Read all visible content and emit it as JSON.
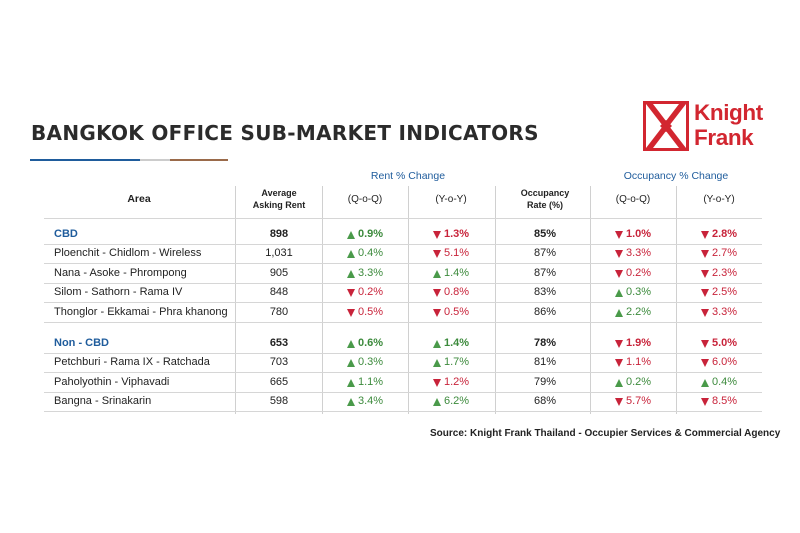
{
  "title": "BANGKOK OFFICE SUB-MARKET INDICATORS",
  "logo": {
    "line1": "Knight",
    "line2": "Frank",
    "color": "#d22630"
  },
  "headers": {
    "area": "Area",
    "rent_line1": "Average",
    "rent_line2": "Asking Rent",
    "rent_change": "Rent % Change",
    "qoq": "(Q-o-Q)",
    "yoy": "(Y-o-Y)",
    "occ_line1": "Occupancy",
    "occ_line2": "Rate (%)",
    "occ_change": "Occupancy % Change"
  },
  "rows": [
    {
      "area": "CBD",
      "group": true,
      "rent": "898",
      "rent_qoq": "0.9%",
      "rent_qoq_dir": "up",
      "rent_yoy": "1.3%",
      "rent_yoy_dir": "down",
      "occ": "85%",
      "occ_qoq": "1.0%",
      "occ_qoq_dir": "down",
      "occ_yoy": "2.8%",
      "occ_yoy_dir": "down"
    },
    {
      "area": "Ploenchit - Chidlom - Wireless",
      "group": false,
      "rent": "1,031",
      "rent_qoq": "0.4%",
      "rent_qoq_dir": "up",
      "rent_yoy": "5.1%",
      "rent_yoy_dir": "down",
      "occ": "87%",
      "occ_qoq": "3.3%",
      "occ_qoq_dir": "down",
      "occ_yoy": "2.7%",
      "occ_yoy_dir": "down"
    },
    {
      "area": "Nana - Asoke - Phrompong",
      "group": false,
      "rent": "905",
      "rent_qoq": "3.3%",
      "rent_qoq_dir": "up",
      "rent_yoy": "1.4%",
      "rent_yoy_dir": "up",
      "occ": "87%",
      "occ_qoq": "0.2%",
      "occ_qoq_dir": "down",
      "occ_yoy": "2.3%",
      "occ_yoy_dir": "down"
    },
    {
      "area": "Silom - Sathorn - Rama IV",
      "group": false,
      "rent": "848",
      "rent_qoq": "0.2%",
      "rent_qoq_dir": "down",
      "rent_yoy": "0.8%",
      "rent_yoy_dir": "down",
      "occ": "83%",
      "occ_qoq": "0.3%",
      "occ_qoq_dir": "up",
      "occ_yoy": "2.5%",
      "occ_yoy_dir": "down"
    },
    {
      "area": "Thonglor  - Ekkamai - Phra khanong",
      "group": false,
      "rent": "780",
      "rent_qoq": "0.5%",
      "rent_qoq_dir": "down",
      "rent_yoy": "0.5%",
      "rent_yoy_dir": "down",
      "occ": "86%",
      "occ_qoq": "2.2%",
      "occ_qoq_dir": "up",
      "occ_yoy": "3.3%",
      "occ_yoy_dir": "down"
    },
    {
      "area": "Non - CBD",
      "group": true,
      "rent": "653",
      "rent_qoq": "0.6%",
      "rent_qoq_dir": "up",
      "rent_yoy": "1.4%",
      "rent_yoy_dir": "up",
      "occ": "78%",
      "occ_qoq": "1.9%",
      "occ_qoq_dir": "down",
      "occ_yoy": "5.0%",
      "occ_yoy_dir": "down"
    },
    {
      "area": "Petchburi - Rama IX - Ratchada",
      "group": false,
      "rent": "703",
      "rent_qoq": "0.3%",
      "rent_qoq_dir": "up",
      "rent_yoy": "1.7%",
      "rent_yoy_dir": "up",
      "occ": "81%",
      "occ_qoq": "1.1%",
      "occ_qoq_dir": "down",
      "occ_yoy": "6.0%",
      "occ_yoy_dir": "down"
    },
    {
      "area": "Paholyothin - Viphavadi",
      "group": false,
      "rent": "665",
      "rent_qoq": "1.1%",
      "rent_qoq_dir": "up",
      "rent_yoy": "1.2%",
      "rent_yoy_dir": "down",
      "occ": "79%",
      "occ_qoq": "0.2%",
      "occ_qoq_dir": "up",
      "occ_yoy": "0.4%",
      "occ_yoy_dir": "up"
    },
    {
      "area": "Bangna - Srinakarin",
      "group": false,
      "rent": "598",
      "rent_qoq": "3.4%",
      "rent_qoq_dir": "up",
      "rent_yoy": "6.2%",
      "rent_yoy_dir": "up",
      "occ": "68%",
      "occ_qoq": "5.7%",
      "occ_qoq_dir": "down",
      "occ_yoy": "8.5%",
      "occ_yoy_dir": "down"
    }
  ],
  "colors": {
    "up": "#3c8a3c",
    "down": "#c8233a",
    "accent": "#1f5c9c"
  },
  "source": "Source: Knight Frank Thailand - Occupier Services & Commercial Agency"
}
